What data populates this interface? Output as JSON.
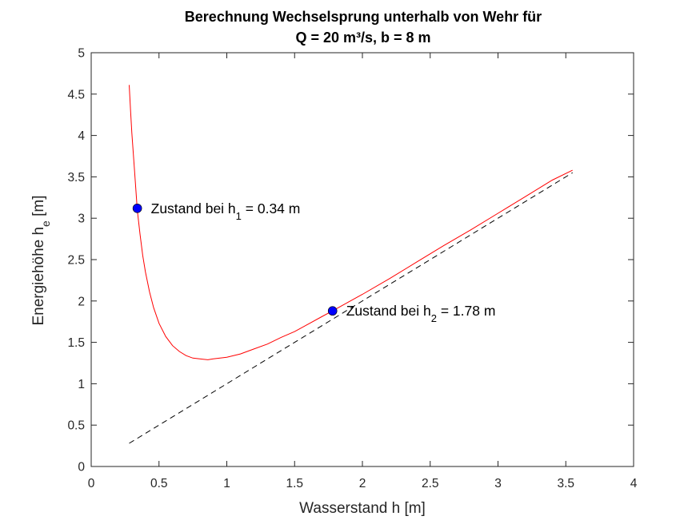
{
  "chart_data": {
    "type": "line",
    "title": [
      "Berechnung Wechselsprung unterhalb von Wehr für",
      "Q = 20 m³/s, b = 8 m"
    ],
    "xlabel": "Wasserstand h [m]",
    "ylabel": {
      "main": "Energiehöhe h",
      "sub": "e",
      "unit": " [m]"
    },
    "xlim": [
      0,
      4
    ],
    "ylim": [
      0,
      5
    ],
    "xticks": [
      0,
      0.5,
      1,
      1.5,
      2,
      2.5,
      3,
      3.5,
      4
    ],
    "xtick_labels": [
      "0",
      "0.5",
      "1",
      "1.5",
      "2",
      "2.5",
      "3",
      "3.5",
      "4"
    ],
    "yticks": [
      0,
      0.5,
      1,
      1.5,
      2,
      2.5,
      3,
      3.5,
      4,
      4.5,
      5
    ],
    "ytick_labels": [
      "0",
      "0.5",
      "1",
      "1.5",
      "2",
      "2.5",
      "3",
      "3.5",
      "4",
      "4.5",
      "5"
    ],
    "grid": false,
    "series": [
      {
        "style": "solid",
        "color": "#ff0000",
        "x": [
          0.28,
          0.29,
          0.3,
          0.32,
          0.34,
          0.36,
          0.38,
          0.4,
          0.43,
          0.46,
          0.5,
          0.55,
          0.6,
          0.65,
          0.7,
          0.75,
          0.8,
          0.86,
          0.9,
          1.0,
          1.1,
          1.2,
          1.3,
          1.4,
          1.5,
          1.6,
          1.7,
          1.78,
          1.9,
          2.0,
          2.2,
          2.4,
          2.6,
          2.8,
          3.0,
          3.2,
          3.4,
          3.55
        ],
        "y": [
          4.61,
          4.3,
          4.03,
          3.57,
          3.1,
          2.81,
          2.55,
          2.35,
          2.11,
          1.92,
          1.73,
          1.57,
          1.46,
          1.39,
          1.34,
          1.31,
          1.3,
          1.29,
          1.3,
          1.32,
          1.36,
          1.42,
          1.48,
          1.56,
          1.63,
          1.72,
          1.81,
          1.88,
          1.99,
          2.08,
          2.27,
          2.47,
          2.67,
          2.86,
          3.06,
          3.26,
          3.46,
          3.58
        ]
      },
      {
        "style": "dashed",
        "color": "#000000",
        "x": [
          0.28,
          3.55
        ],
        "y": [
          0.28,
          3.55
        ]
      }
    ],
    "points": [
      {
        "x": 0.34,
        "y": 3.12,
        "color": "#0000ff",
        "label": {
          "pre": "Zustand bei h",
          "sub": "1",
          "post": " = 0.34 m"
        }
      },
      {
        "x": 1.78,
        "y": 1.88,
        "color": "#0000ff",
        "label": {
          "pre": "Zustand bei h",
          "sub": "2",
          "post": " = 1.78 m"
        }
      }
    ]
  }
}
